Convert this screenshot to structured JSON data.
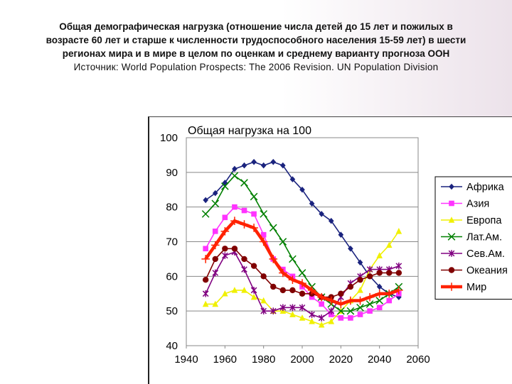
{
  "heading": {
    "line1": "Общая демографическая нагрузка (отношение числа детей до 15 лет и пожилых в",
    "line2": "возрасте 60 лет и старше к численности трудоспособного населения 15-59 лет)  в шести",
    "line3": "регионах мира и в мире в целом по оценкам и среднему варианту прогноза ООН",
    "source": "Источник: World Population Prospects: The 2006 Revision. UN Population Division"
  },
  "chart_data": {
    "type": "line",
    "title": "Общая нагрузка на 100",
    "xlabel": "",
    "ylabel": "",
    "xlim": [
      1940,
      2060
    ],
    "ylim": [
      40,
      100
    ],
    "xticks": [
      1940,
      1960,
      1980,
      2000,
      2020,
      2040,
      2060
    ],
    "yticks": [
      40,
      50,
      60,
      70,
      80,
      90,
      100
    ],
    "x": [
      1950,
      1955,
      1960,
      1965,
      1970,
      1975,
      1980,
      1985,
      1990,
      1995,
      2000,
      2005,
      2010,
      2015,
      2020,
      2025,
      2030,
      2035,
      2040,
      2045,
      2050
    ],
    "series": [
      {
        "name": "Африка",
        "color": "#1a237e",
        "marker": "diamond",
        "values": [
          82,
          84,
          87,
          91,
          92,
          93,
          92,
          93,
          92,
          88,
          85,
          81,
          78,
          76,
          72,
          68,
          64,
          60,
          57,
          55,
          54
        ]
      },
      {
        "name": "Азия",
        "color": "#ff33ff",
        "marker": "square",
        "values": [
          68,
          73,
          77,
          80,
          79,
          78,
          72,
          65,
          62,
          60,
          57,
          54,
          52,
          49,
          48,
          48,
          49,
          50,
          51,
          53,
          55
        ]
      },
      {
        "name": "Европа",
        "color": "#f0f000",
        "marker": "triangle",
        "values": [
          52,
          52,
          55,
          56,
          56,
          54,
          53,
          50,
          50,
          49,
          48,
          47,
          46,
          47,
          50,
          53,
          56,
          62,
          66,
          69,
          73
        ]
      },
      {
        "name": "Лат.Ам.",
        "color": "#008000",
        "marker": "x",
        "values": [
          78,
          81,
          86,
          89,
          87,
          83,
          78,
          74,
          70,
          65,
          61,
          57,
          54,
          52,
          50,
          50,
          51,
          52,
          53,
          55,
          57
        ]
      },
      {
        "name": "Сев.Ам.",
        "color": "#800080",
        "marker": "star",
        "values": [
          55,
          61,
          66,
          67,
          62,
          56,
          50,
          50,
          51,
          51,
          51,
          49,
          48,
          50,
          54,
          58,
          60,
          62,
          62,
          62,
          63
        ]
      },
      {
        "name": "Океания",
        "color": "#800000",
        "marker": "circle",
        "values": [
          59,
          65,
          68,
          68,
          65,
          63,
          60,
          57,
          56,
          56,
          55,
          55,
          54,
          54,
          55,
          57,
          59,
          60,
          61,
          61,
          61
        ]
      },
      {
        "name": "Мир",
        "color": "#ff2200",
        "marker": "plus",
        "values": [
          65,
          69,
          73,
          76,
          75,
          74,
          70,
          65,
          61,
          59,
          58,
          56,
          54,
          53,
          52,
          53,
          53,
          54,
          55,
          55,
          56
        ]
      }
    ]
  }
}
